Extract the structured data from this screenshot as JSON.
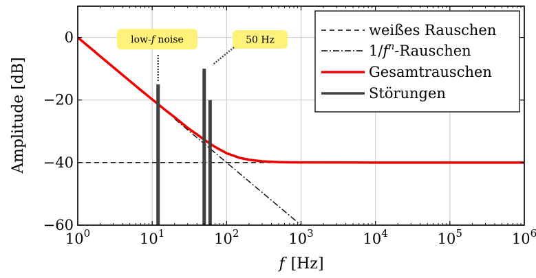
{
  "chart_data": {
    "type": "line",
    "title": "",
    "xlabel_var": "f",
    "xlabel_unit": "[Hz]",
    "ylabel": "Amplitude [dB]",
    "xscale": "log",
    "xlim": [
      1,
      1000000
    ],
    "ylim": [
      -60,
      10
    ],
    "grid": true,
    "legend_position": "top-right",
    "x_ticks": [
      {
        "base": "10",
        "exp": "0",
        "value": 1
      },
      {
        "base": "10",
        "exp": "1",
        "value": 10
      },
      {
        "base": "10",
        "exp": "2",
        "value": 100
      },
      {
        "base": "10",
        "exp": "3",
        "value": 1000
      },
      {
        "base": "10",
        "exp": "4",
        "value": 10000
      },
      {
        "base": "10",
        "exp": "5",
        "value": 100000
      },
      {
        "base": "10",
        "exp": "6",
        "value": 1000000
      }
    ],
    "y_ticks": [
      {
        "label": "0",
        "value": 0
      },
      {
        "label": "−20",
        "value": -20
      },
      {
        "label": "−40",
        "value": -40
      },
      {
        "label": "−60",
        "value": -60
      }
    ],
    "legend": [
      {
        "label": "weißes Rauschen",
        "style": "dashed",
        "color": "#000000"
      },
      {
        "label_pre": "1/",
        "label_var": "f",
        "label_sup": "n",
        "label_post": "-Rauschen",
        "style": "dashdot",
        "color": "#000000"
      },
      {
        "label": "Gesamtrauschen",
        "style": "solid-thick",
        "color": "#ee0000"
      },
      {
        "label": "Störungen",
        "style": "solid-bars",
        "color": "#404040"
      }
    ],
    "series": [
      {
        "name": "weißes Rauschen",
        "x": [
          1,
          30,
          400
        ],
        "y": [
          -40,
          -40,
          -40
        ],
        "color": "#000000",
        "dash": "7,5"
      },
      {
        "name": "1/f^n-Rauschen",
        "x": [
          20,
          100,
          1000
        ],
        "y": [
          -26,
          -40,
          -60
        ],
        "color": "#000000",
        "dash": "9,3,2,3"
      },
      {
        "name": "Gesamtrauschen",
        "x": [
          1,
          1.5,
          2,
          3,
          5,
          7,
          10,
          15,
          20,
          30,
          40,
          50,
          70,
          100,
          150,
          200,
          300,
          500,
          700,
          1000,
          10000,
          100000,
          1000000
        ],
        "y": [
          0,
          -3.5,
          -6,
          -9.5,
          -13.9,
          -16.8,
          -19.8,
          -23.2,
          -25.5,
          -28.9,
          -31,
          -32.7,
          -35,
          -37,
          -38.5,
          -39.1,
          -39.6,
          -39.85,
          -39.93,
          -39.96,
          -40,
          -40,
          -40
        ],
        "color": "#ee0000"
      }
    ],
    "interferences": [
      {
        "f": 12,
        "amplitude": -15
      },
      {
        "f": 50,
        "amplitude": -10
      },
      {
        "f": 60,
        "amplitude": -20
      }
    ],
    "bar_color": "#404040",
    "annotations": [
      {
        "pre": "low-",
        "var": "f",
        "post": " noise",
        "f": 12,
        "line_from": -5,
        "line_to": -14
      },
      {
        "pre": "50 Hz",
        "var": "",
        "post": "",
        "f": 50,
        "line_from": -5,
        "line_to": -9
      }
    ],
    "annotation_bg": "#fff27a"
  }
}
